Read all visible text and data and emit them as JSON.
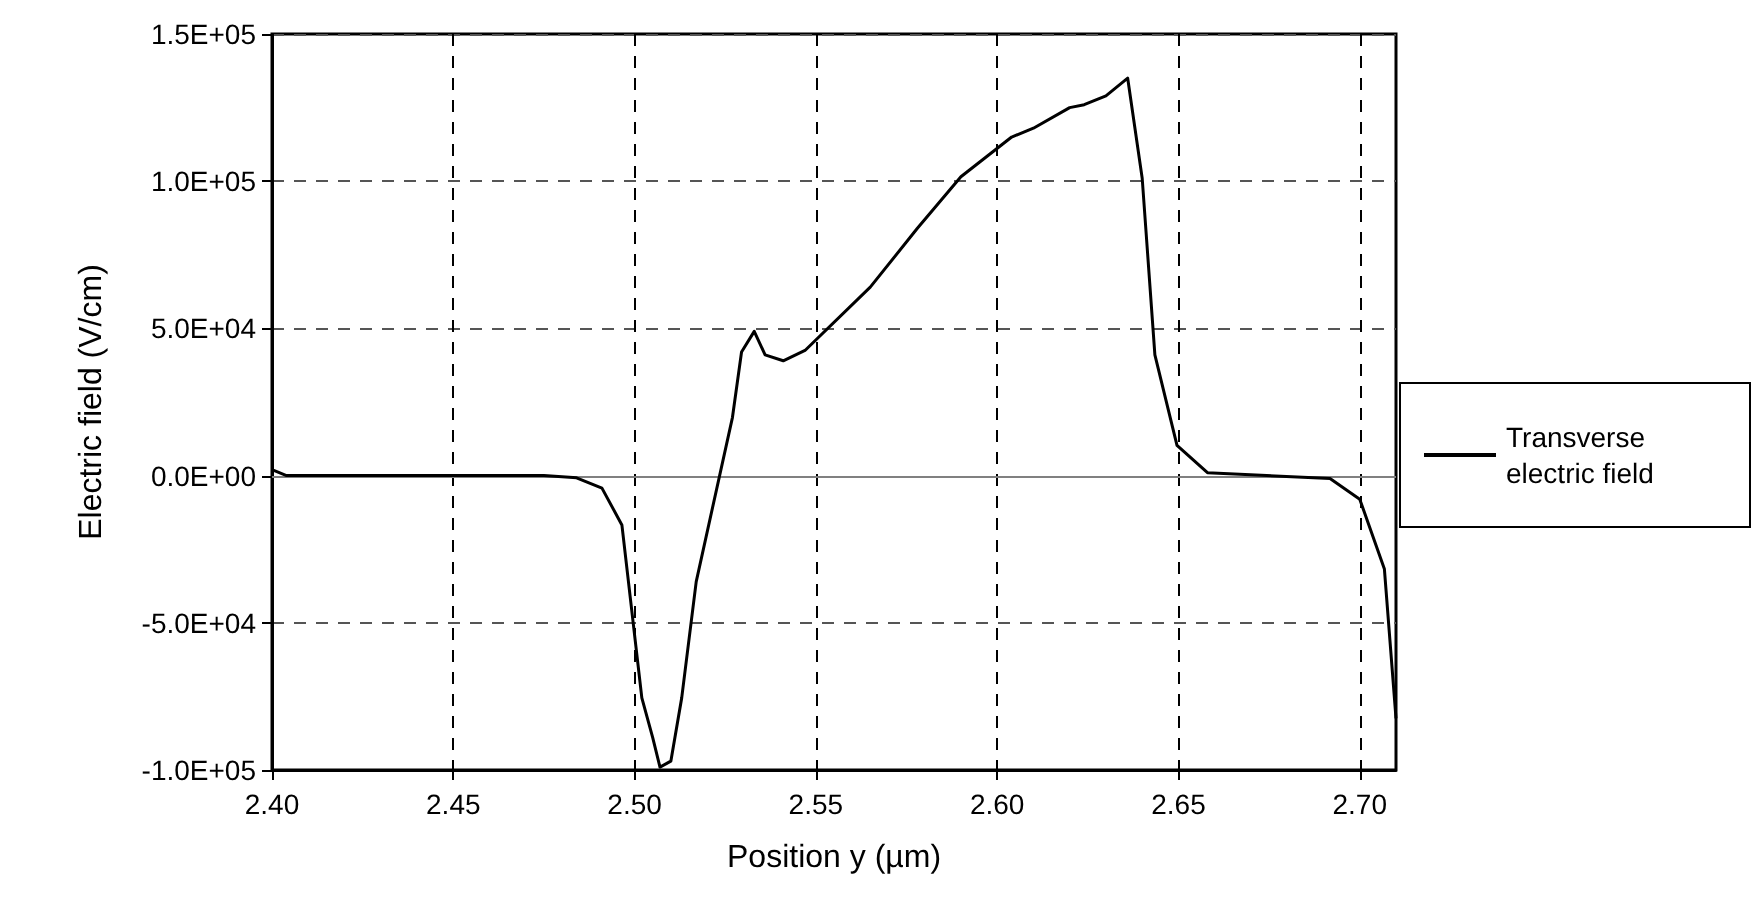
{
  "chart_data": {
    "type": "line",
    "xlabel": "Position y (µm)",
    "ylabel": "Electric field (V/cm)",
    "xlim": [
      2.4,
      2.71
    ],
    "xticks": [
      {
        "value": 2.4,
        "label": "2.40"
      },
      2.45,
      {
        "value": 2.5,
        "label": "2.50"
      },
      2.55,
      {
        "value": 2.6,
        "label": "2.60"
      },
      2.65,
      {
        "value": 2.7,
        "label": "2.70"
      }
    ],
    "ylim": [
      -100000,
      150000
    ],
    "yticks": [
      {
        "value": -100000,
        "label": "-1.0E+05"
      },
      {
        "value": -50000,
        "label": "-5.0E+04"
      },
      {
        "value": 0,
        "label": "0.0E+00"
      },
      {
        "value": 50000,
        "label": "5.0E+04"
      },
      {
        "value": 100000,
        "label": "1.0E+05"
      },
      {
        "value": 150000,
        "label": "1.5E+05"
      }
    ],
    "x": [
      2.4,
      2.404,
      2.475,
      2.484,
      2.491,
      2.4965,
      2.502,
      2.505,
      2.507,
      2.51,
      2.513,
      2.517,
      2.527,
      2.5295,
      2.533,
      2.536,
      2.541,
      2.547,
      2.565,
      2.578,
      2.59,
      2.604,
      2.61,
      2.62,
      2.624,
      2.63,
      2.636,
      2.64,
      2.6435,
      2.6496,
      2.658,
      2.6918,
      2.7,
      2.7068,
      2.71
    ],
    "series": [
      {
        "name": "Transverse electric field",
        "color": "#000000",
        "values": [
          2000,
          0,
          0,
          -750,
          -4250,
          -16750,
          -75500,
          -89000,
          -99000,
          -97000,
          -75500,
          -36000,
          19800,
          42000,
          49000,
          41000,
          39000,
          42500,
          64000,
          84000,
          101500,
          115000,
          118000,
          125000,
          126000,
          129000,
          135000,
          101000,
          41000,
          10300,
          1000,
          -1000,
          -8000,
          -31750,
          -82500
        ]
      }
    ],
    "ref_lines": [
      {
        "axis": "y",
        "value": 0,
        "color": "#808080",
        "line_style": "solid"
      }
    ],
    "grid": true,
    "legend": "right",
    "marker": "none",
    "line_style": "solid"
  }
}
